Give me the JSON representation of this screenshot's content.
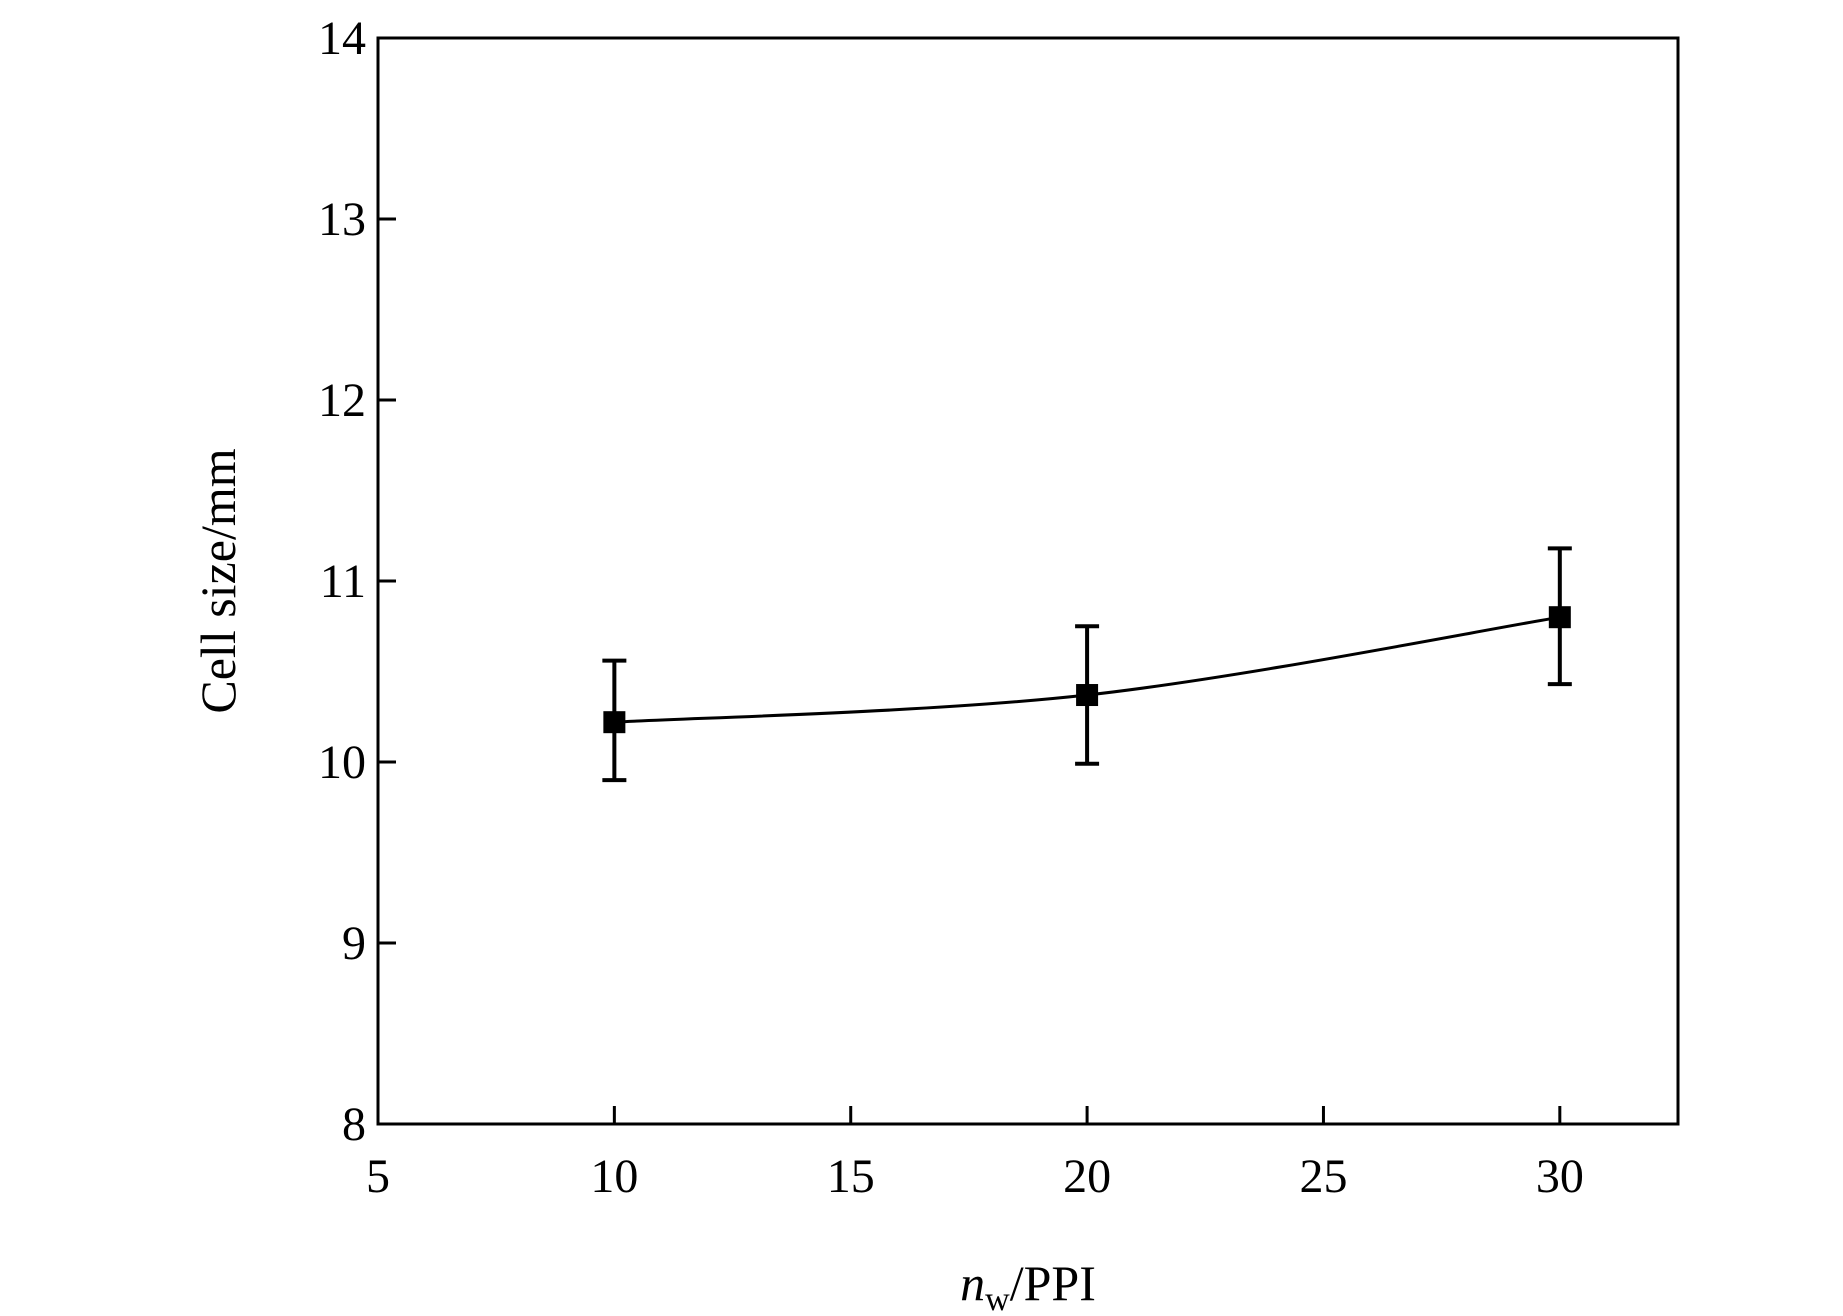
{
  "chart_data": {
    "type": "scatter",
    "title": "",
    "xlabel": {
      "main": "n",
      "sub": "w",
      "rest": "/PPI"
    },
    "ylabel": "Cell size/mm",
    "xlim": [
      5,
      32.5
    ],
    "ylim": [
      8,
      14
    ],
    "xticks": [
      5,
      10,
      15,
      20,
      25,
      30
    ],
    "yticks": [
      8,
      9,
      10,
      11,
      12,
      13,
      14
    ],
    "grid": false,
    "legend": "none",
    "series": [
      {
        "x": [
          10,
          20,
          30
        ],
        "y": [
          10.22,
          10.37,
          10.8
        ],
        "yerr_low": [
          9.9,
          9.99,
          10.43
        ],
        "yerr_high": [
          10.56,
          10.75,
          11.18
        ],
        "fit_curve": "smooth"
      }
    ],
    "colors": {
      "line": "#000000",
      "marker": "#000000"
    }
  }
}
